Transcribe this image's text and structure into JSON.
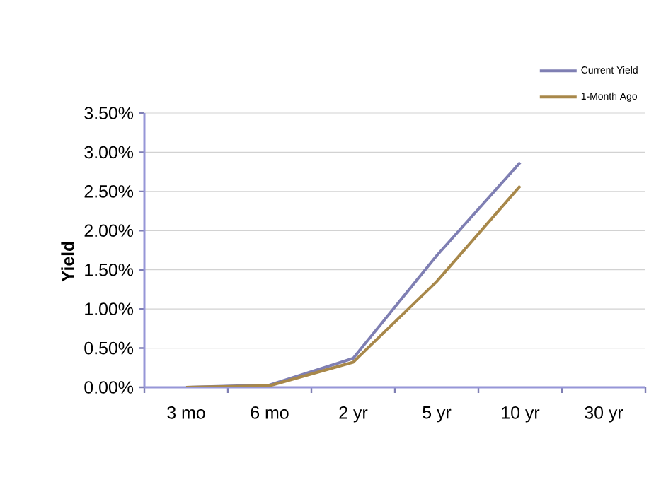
{
  "chart_data": {
    "type": "line",
    "ylabel": "Yield",
    "categories": [
      "3 mo",
      "6 mo",
      "2 yr",
      "5 yr",
      "10 yr",
      "30 yr"
    ],
    "series": [
      {
        "name": "Current Yield",
        "color": "#7f7fb3",
        "values": [
          0.0,
          0.03,
          0.37,
          1.68,
          2.87,
          null
        ]
      },
      {
        "name": "1-Month Ago",
        "color": "#a8884a",
        "values": [
          0.0,
          0.02,
          0.32,
          1.35,
          2.57,
          null
        ]
      }
    ],
    "ylim": [
      0,
      3.5
    ],
    "yticks": [
      {
        "value": 0,
        "label": "0.00%"
      },
      {
        "value": 0.5,
        "label": "0.50%"
      },
      {
        "value": 1.0,
        "label": "1.00%"
      },
      {
        "value": 1.5,
        "label": "1.50%"
      },
      {
        "value": 2.0,
        "label": "2.00%"
      },
      {
        "value": 2.5,
        "label": "2.50%"
      },
      {
        "value": 3.0,
        "label": "3.00%"
      },
      {
        "value": 3.5,
        "label": "3.50%"
      }
    ],
    "grid": "y",
    "legend": "top right",
    "marker": "none",
    "line_style": "solid"
  }
}
